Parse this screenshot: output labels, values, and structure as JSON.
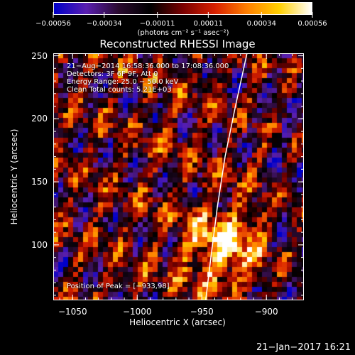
{
  "colorbar": {
    "tick_labels": [
      "−0.00056",
      "−0.00034",
      "−0.00011",
      "0.00011",
      "0.00034",
      "0.00056"
    ],
    "tick_values": [
      -0.00056,
      -0.00034,
      -0.00011,
      0.00011,
      0.00034,
      0.00056
    ],
    "units": "(photons cm⁻² s⁻¹ asec⁻²)",
    "colors": [
      "#0000c8",
      "#5a1fb0",
      "#2a0a30",
      "#000000",
      "#7a0000",
      "#d82000",
      "#ff8000",
      "#ffd000",
      "#ffffff"
    ]
  },
  "title": "Reconstructed RHESSI Image",
  "annotations": {
    "line1": "21−Aug−2014 16:58:36.000 to 17:08:36.000",
    "line2": "Detectors: 3F 6F 9F, Att 0",
    "line3": "Energy Range: 25.0 − 50.0 keV",
    "line4": "Clean    Total counts: 5.21E+03",
    "peak": "Position of Peak = [−933,98]"
  },
  "axes": {
    "xlabel": "Heliocentric X (arcsec)",
    "ylabel": "Heliocentric Y (arcsec)",
    "xlim": [
      -1065,
      -871
    ],
    "ylim": [
      56,
      252
    ],
    "xticks": [
      -1050,
      -1000,
      -950,
      -900
    ],
    "xtick_labels": [
      "−1050",
      "−1000",
      "−950",
      "−900"
    ],
    "yticks": [
      100,
      150,
      200,
      250
    ],
    "ytick_labels": [
      "100",
      "150",
      "200",
      "250"
    ]
  },
  "limb": {
    "points": [
      [
        -947,
        56
      ],
      [
        -943,
        90
      ],
      [
        -938,
        130
      ],
      [
        -932,
        170
      ],
      [
        -924,
        210
      ],
      [
        -915,
        252
      ]
    ]
  },
  "peak": {
    "x": -933,
    "y": 98
  },
  "timestamp": "21−Jan−2017 16:21"
}
